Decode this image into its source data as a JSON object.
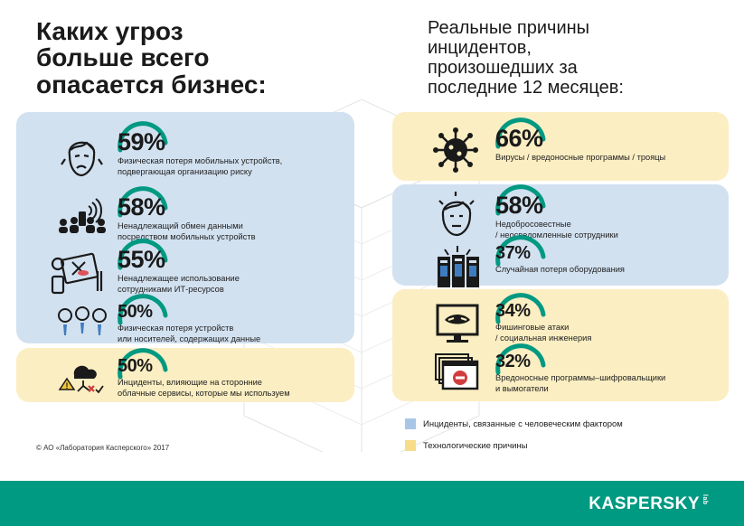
{
  "left": {
    "title": "Каких угроз\nбольше всего\nопасается бизнес:",
    "items": [
      {
        "percent": "59%",
        "text": "Физическая потеря мобильных устройств,\nподвергающая организацию риску",
        "icon": "worried-face-icon"
      },
      {
        "percent": "58%",
        "text": "Ненадлежащий обмен данными\nпосредством мобильных устройств",
        "icon": "people-sharing-wifi-icon"
      },
      {
        "percent": "55%",
        "text": "Ненадлежащее использование\nсотрудниками ИТ-ресурсов",
        "icon": "devices-misuse-icon"
      },
      {
        "percent": "50%",
        "text": "Физическая потеря устройств\nили носителей, содержащих данные",
        "icon": "employees-group-icon"
      },
      {
        "percent": "50%",
        "text": "Инциденты, влияющие на сторонние\nоблачные сервисы, которые мы используем",
        "icon": "cloud-warning-icon"
      }
    ]
  },
  "right": {
    "title": "Реальные причины\nинцидентов,\nпроизошедших за\nпоследние 12 месяцев:",
    "items": [
      {
        "percent": "66%",
        "text": "Вирусы / вредоносные программы / трояцы",
        "icon": "virus-icon"
      },
      {
        "percent": "58%",
        "text": "Недобросовестные\n/ неосведомленные сотрудники",
        "icon": "stressed-employee-icon"
      },
      {
        "percent": "37%",
        "text": "Случайная потеря оборудования",
        "icon": "server-loss-icon"
      },
      {
        "percent": "34%",
        "text": "Фишинговые атаки\n/ социальная инженерия",
        "icon": "phishing-monitor-icon"
      },
      {
        "percent": "32%",
        "text": "Вредоносные программы–шифровальщики\nи вымогатели",
        "icon": "ransomware-window-icon"
      }
    ]
  },
  "legend": {
    "human": "Инциденты, связанные с человеческим фактором",
    "tech": "Технологические причины"
  },
  "copyright": "© АО «Лаборатория Касперского» 2017",
  "brand": "KASPERSKY",
  "brand_suffix": "lab",
  "colors": {
    "accent": "#009982",
    "human": "#d2e1f0",
    "tech": "#fbeec2",
    "legend_human": "#a9c6e6",
    "legend_tech": "#f7dc8a"
  }
}
